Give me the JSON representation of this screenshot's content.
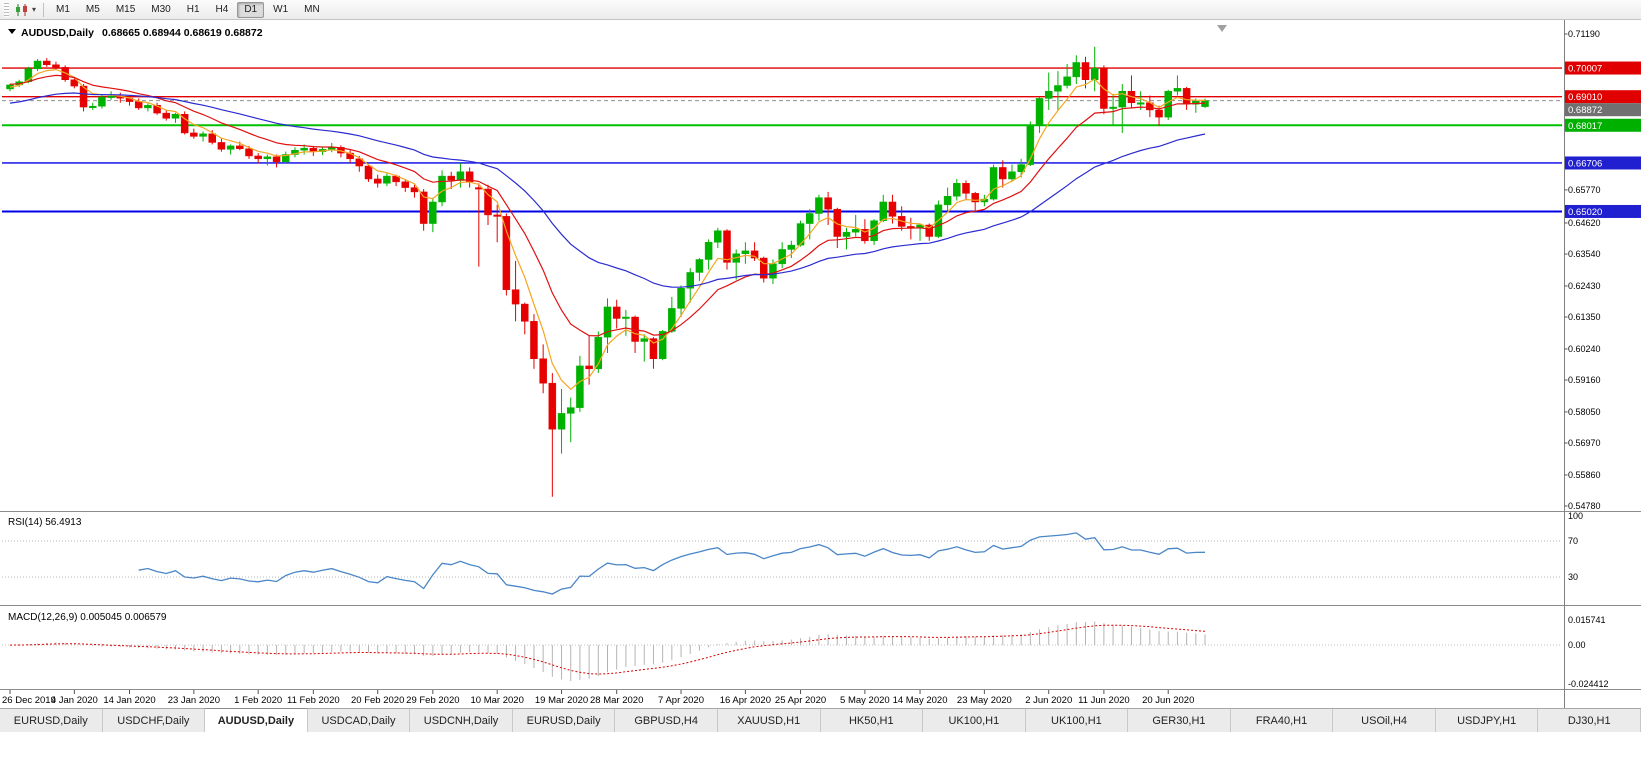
{
  "toolbar": {
    "timeframes": [
      "M1",
      "M5",
      "M15",
      "M30",
      "H1",
      "H4",
      "D1",
      "W1",
      "MN"
    ],
    "active": "D1"
  },
  "chart": {
    "symbol_title": "AUDUSD,Daily",
    "ohlc": "0.68665 0.68944 0.68619 0.68872"
  },
  "chart_data": {
    "type": "candlestick",
    "symbol": "AUDUSD",
    "timeframe": "Daily",
    "title": "AUDUSD,Daily",
    "ohlc_display": {
      "open": "0.68665",
      "high": "0.68944",
      "low": "0.68619",
      "close": "0.68872"
    },
    "colors": {
      "up": "#00B200",
      "down": "#E60000",
      "rsi": "#4a86c8",
      "macd_hist": "#b4b4b4",
      "macd_signal": "#dd0000"
    },
    "y_axis": {
      "max": 0.7119,
      "min": 0.5478,
      "ticks": [
        "0.71190",
        "0.65770",
        "0.64620",
        "0.63540",
        "0.62430",
        "0.61350",
        "0.60240",
        "0.59160",
        "0.58050",
        "0.56970",
        "0.55860",
        "0.54780"
      ]
    },
    "h_lines": [
      {
        "price": 0.70007,
        "label": "0.70007",
        "color": "#e00000",
        "width": 1.4,
        "dashed": false,
        "badge": "#e00000"
      },
      {
        "price": 0.6901,
        "label": "0.69010",
        "color": "#e00000",
        "width": 1.4,
        "dashed": false,
        "badge": "#e00000"
      },
      {
        "price": 0.68872,
        "label": "0.68872",
        "color": "#909090",
        "width": 1,
        "dashed": true,
        "badge": "#707070"
      },
      {
        "price": 0.68017,
        "label": "0.68017",
        "color": "#00c000",
        "width": 2,
        "dashed": false,
        "badge": "#00b000"
      },
      {
        "price": 0.66706,
        "label": "0.66706",
        "color": "#0000e6",
        "width": 1.4,
        "dashed": false,
        "badge": "#2020d0"
      },
      {
        "price": 0.6502,
        "label": "0.65020",
        "color": "#0000e6",
        "width": 2,
        "dashed": false,
        "badge": "#2020d0"
      }
    ],
    "ma": [
      {
        "period": 5,
        "color": "#f5a623",
        "seed": 0.693
      },
      {
        "period": 13,
        "color": "#e01010",
        "seed": 0.6945
      },
      {
        "period": 34,
        "color": "#2b2bd0",
        "seed": 0.6875
      }
    ],
    "rsi": {
      "label": "RSI(14) 56.4913",
      "period": 14,
      "levels": [
        "100",
        "70",
        "30"
      ]
    },
    "macd": {
      "label": "MACD(12,26,9) 0.005045 0.006579",
      "axis": [
        "0.015741",
        "0.00",
        "-0.024412"
      ]
    },
    "x_labels": [
      "26 Dec 2019",
      "4 Jan 2020",
      "14 Jan 2020",
      "23 Jan 2020",
      "1 Feb 2020",
      "11 Feb 2020",
      "20 Feb 2020",
      "29 Feb 2020",
      "10 Mar 2020",
      "19 Mar 2020",
      "28 Mar 2020",
      "7 Apr 2020",
      "16 Apr 2020",
      "25 Apr 2020",
      "5 May 2020",
      "14 May 2020",
      "23 May 2020",
      "2 Jun 2020",
      "11 Jun 2020",
      "20 Jun 2020"
    ],
    "candles": [
      [
        0.6928,
        0.6946,
        0.692,
        0.6942
      ],
      [
        0.6942,
        0.696,
        0.6935,
        0.6953
      ],
      [
        0.6953,
        0.7005,
        0.6948,
        0.6998
      ],
      [
        0.6998,
        0.7032,
        0.699,
        0.7025
      ],
      [
        0.7025,
        0.7035,
        0.7005,
        0.7012
      ],
      [
        0.7012,
        0.7023,
        0.6995,
        0.7003
      ],
      [
        0.7003,
        0.701,
        0.6953,
        0.696
      ],
      [
        0.696,
        0.6965,
        0.693,
        0.6938
      ],
      [
        0.6938,
        0.6945,
        0.685,
        0.6865
      ],
      [
        0.6865,
        0.688,
        0.6855,
        0.6868
      ],
      [
        0.6868,
        0.691,
        0.686,
        0.69
      ],
      [
        0.69,
        0.692,
        0.689,
        0.6903
      ],
      [
        0.6903,
        0.6915,
        0.688,
        0.6896
      ],
      [
        0.6896,
        0.6905,
        0.687,
        0.6884
      ],
      [
        0.6884,
        0.6895,
        0.6855,
        0.6862
      ],
      [
        0.6862,
        0.6878,
        0.685,
        0.6871
      ],
      [
        0.6871,
        0.688,
        0.6838,
        0.6844
      ],
      [
        0.6844,
        0.6855,
        0.6818,
        0.6826
      ],
      [
        0.6826,
        0.6845,
        0.681,
        0.684
      ],
      [
        0.684,
        0.685,
        0.677,
        0.6775
      ],
      [
        0.6775,
        0.679,
        0.6755,
        0.6763
      ],
      [
        0.6763,
        0.678,
        0.6745,
        0.6772
      ],
      [
        0.6772,
        0.6785,
        0.6735,
        0.6742
      ],
      [
        0.6742,
        0.6755,
        0.671,
        0.6718
      ],
      [
        0.6718,
        0.6735,
        0.67,
        0.673
      ],
      [
        0.673,
        0.6745,
        0.6715,
        0.672
      ],
      [
        0.672,
        0.673,
        0.6685,
        0.6695
      ],
      [
        0.6695,
        0.6705,
        0.667,
        0.6685
      ],
      [
        0.6685,
        0.67,
        0.6662,
        0.6692
      ],
      [
        0.6692,
        0.67,
        0.6655,
        0.6675
      ],
      [
        0.6675,
        0.671,
        0.667,
        0.67
      ],
      [
        0.67,
        0.6725,
        0.669,
        0.6715
      ],
      [
        0.6715,
        0.6735,
        0.67,
        0.6722
      ],
      [
        0.6722,
        0.673,
        0.6695,
        0.671
      ],
      [
        0.671,
        0.6728,
        0.6698,
        0.6718
      ],
      [
        0.6718,
        0.674,
        0.6708,
        0.6725
      ],
      [
        0.6725,
        0.6732,
        0.669,
        0.6705
      ],
      [
        0.6705,
        0.6715,
        0.667,
        0.6685
      ],
      [
        0.6685,
        0.6695,
        0.664,
        0.666
      ],
      [
        0.666,
        0.6665,
        0.6605,
        0.6615
      ],
      [
        0.6615,
        0.663,
        0.6585,
        0.66
      ],
      [
        0.66,
        0.6635,
        0.659,
        0.6625
      ],
      [
        0.6625,
        0.663,
        0.659,
        0.6605
      ],
      [
        0.6605,
        0.6615,
        0.657,
        0.6585
      ],
      [
        0.6585,
        0.6595,
        0.655,
        0.657
      ],
      [
        0.657,
        0.658,
        0.6435,
        0.646
      ],
      [
        0.646,
        0.655,
        0.643,
        0.6535
      ],
      [
        0.6535,
        0.6645,
        0.652,
        0.6625
      ],
      [
        0.6625,
        0.664,
        0.658,
        0.661
      ],
      [
        0.661,
        0.667,
        0.6585,
        0.664
      ],
      [
        0.664,
        0.6655,
        0.6585,
        0.6605
      ],
      [
        0.6585,
        0.66,
        0.631,
        0.658
      ],
      [
        0.658,
        0.6595,
        0.6455,
        0.649
      ],
      [
        0.649,
        0.6525,
        0.6395,
        0.6485
      ],
      [
        0.6485,
        0.6495,
        0.621,
        0.623
      ],
      [
        0.623,
        0.633,
        0.612,
        0.618
      ],
      [
        0.618,
        0.6185,
        0.6075,
        0.612
      ],
      [
        0.612,
        0.6145,
        0.5955,
        0.599
      ],
      [
        0.599,
        0.604,
        0.587,
        0.5905
      ],
      [
        0.5905,
        0.594,
        0.551,
        0.5745
      ],
      [
        0.5745,
        0.5885,
        0.566,
        0.58
      ],
      [
        0.58,
        0.5855,
        0.57,
        0.582
      ],
      [
        0.582,
        0.6,
        0.5805,
        0.5965
      ],
      [
        0.5965,
        0.607,
        0.59,
        0.5955
      ],
      [
        0.5955,
        0.6085,
        0.594,
        0.6065
      ],
      [
        0.6065,
        0.62,
        0.601,
        0.617
      ],
      [
        0.617,
        0.6195,
        0.6095,
        0.613
      ],
      [
        0.613,
        0.616,
        0.607,
        0.6135
      ],
      [
        0.6135,
        0.614,
        0.601,
        0.605
      ],
      [
        0.605,
        0.6075,
        0.598,
        0.606
      ],
      [
        0.606,
        0.6065,
        0.5955,
        0.599
      ],
      [
        0.599,
        0.609,
        0.5985,
        0.6085
      ],
      [
        0.6085,
        0.6205,
        0.608,
        0.6165
      ],
      [
        0.6165,
        0.6245,
        0.6135,
        0.6235
      ],
      [
        0.6235,
        0.6305,
        0.6185,
        0.629
      ],
      [
        0.629,
        0.634,
        0.626,
        0.6335
      ],
      [
        0.6335,
        0.6405,
        0.63,
        0.6395
      ],
      [
        0.6395,
        0.6445,
        0.6375,
        0.6435
      ],
      [
        0.6435,
        0.644,
        0.63,
        0.6325
      ],
      [
        0.6325,
        0.637,
        0.6265,
        0.6355
      ],
      [
        0.6355,
        0.6395,
        0.632,
        0.6365
      ],
      [
        0.6365,
        0.6395,
        0.633,
        0.634
      ],
      [
        0.634,
        0.6345,
        0.6255,
        0.627
      ],
      [
        0.627,
        0.6335,
        0.625,
        0.632
      ],
      [
        0.632,
        0.6395,
        0.6305,
        0.637
      ],
      [
        0.637,
        0.64,
        0.634,
        0.6385
      ],
      [
        0.6385,
        0.647,
        0.638,
        0.646
      ],
      [
        0.646,
        0.651,
        0.6405,
        0.6495
      ],
      [
        0.6495,
        0.656,
        0.647,
        0.655
      ],
      [
        0.655,
        0.657,
        0.6455,
        0.651
      ],
      [
        0.651,
        0.6515,
        0.6375,
        0.6415
      ],
      [
        0.6415,
        0.6445,
        0.637,
        0.643
      ],
      [
        0.643,
        0.649,
        0.6415,
        0.644
      ],
      [
        0.644,
        0.6475,
        0.639,
        0.64
      ],
      [
        0.64,
        0.6475,
        0.6385,
        0.647
      ],
      [
        0.647,
        0.656,
        0.6465,
        0.6535
      ],
      [
        0.6535,
        0.656,
        0.646,
        0.6485
      ],
      [
        0.6485,
        0.652,
        0.6435,
        0.645
      ],
      [
        0.645,
        0.648,
        0.6405,
        0.6445
      ],
      [
        0.6445,
        0.646,
        0.64,
        0.6455
      ],
      [
        0.6455,
        0.646,
        0.64,
        0.6415
      ],
      [
        0.6415,
        0.654,
        0.641,
        0.6525
      ],
      [
        0.6525,
        0.6585,
        0.6505,
        0.6555
      ],
      [
        0.6555,
        0.6615,
        0.654,
        0.66
      ],
      [
        0.66,
        0.661,
        0.6545,
        0.6565
      ],
      [
        0.6565,
        0.657,
        0.6505,
        0.6535
      ],
      [
        0.6535,
        0.656,
        0.652,
        0.6545
      ],
      [
        0.6545,
        0.6665,
        0.654,
        0.6655
      ],
      [
        0.6655,
        0.668,
        0.6585,
        0.6615
      ],
      [
        0.6615,
        0.6665,
        0.6605,
        0.664
      ],
      [
        0.664,
        0.6685,
        0.662,
        0.6665
      ],
      [
        0.6665,
        0.6815,
        0.666,
        0.68
      ],
      [
        0.68,
        0.69,
        0.6775,
        0.6895
      ],
      [
        0.6895,
        0.6985,
        0.6855,
        0.692
      ],
      [
        0.692,
        0.699,
        0.6855,
        0.694
      ],
      [
        0.694,
        0.7015,
        0.693,
        0.697
      ],
      [
        0.697,
        0.7045,
        0.6945,
        0.702
      ],
      [
        0.702,
        0.704,
        0.693,
        0.696
      ],
      [
        0.696,
        0.7075,
        0.692,
        0.7
      ],
      [
        0.7,
        0.701,
        0.684,
        0.686
      ],
      [
        0.686,
        0.691,
        0.68,
        0.6865
      ],
      [
        0.6865,
        0.6945,
        0.6775,
        0.692
      ],
      [
        0.692,
        0.6975,
        0.686,
        0.688
      ],
      [
        0.688,
        0.692,
        0.6855,
        0.688
      ],
      [
        0.688,
        0.6905,
        0.683,
        0.6855
      ],
      [
        0.6855,
        0.687,
        0.68,
        0.683
      ],
      [
        0.683,
        0.6925,
        0.682,
        0.692
      ],
      [
        0.692,
        0.6975,
        0.6905,
        0.693
      ],
      [
        0.693,
        0.6935,
        0.6855,
        0.6875
      ],
      [
        0.6875,
        0.6895,
        0.6845,
        0.6885
      ],
      [
        0.68665,
        0.68944,
        0.68619,
        0.68872
      ]
    ]
  },
  "tabs": {
    "active_index": 2,
    "items": [
      "EURUSD,Daily",
      "USDCHF,Daily",
      "AUDUSD,Daily",
      "USDCAD,Daily",
      "USDCNH,Daily",
      "EURUSD,Daily",
      "GBPUSD,H4",
      "XAUUSD,H1",
      "HK50,H1",
      "UK100,H1",
      "UK100,H1",
      "GER30,H1",
      "FRA40,H1",
      "USOil,H4",
      "USDJPY,H1",
      "DJ30,H1"
    ]
  }
}
